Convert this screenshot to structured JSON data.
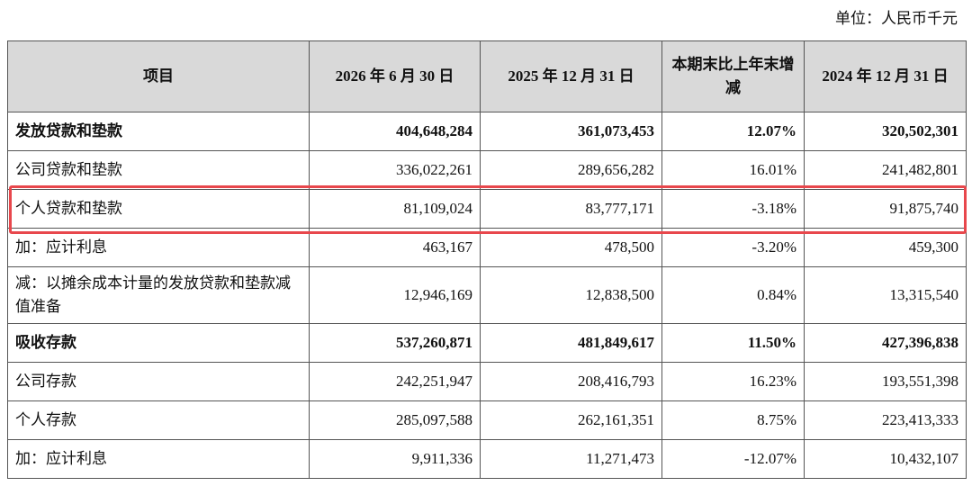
{
  "unit": "单位：人民币千元",
  "table": {
    "header": [
      "项目",
      "2026 年 6 月 30 日",
      "2025 年 12 月 31 日",
      "本期末比上年末增减",
      "2024 年 12 月 31 日"
    ],
    "rows": [
      [
        "发放贷款和垫款",
        "404,648,284",
        "361,073,453",
        "12.07%",
        "320,502,301"
      ],
      [
        "公司贷款和垫款",
        "336,022,261",
        "289,656,282",
        "16.01%",
        "241,482,801"
      ],
      [
        "个人贷款和垫款",
        "81,109,024",
        "83,777,171",
        "-3.18%",
        "91,875,740"
      ],
      [
        "加：应计利息",
        "463,167",
        "478,500",
        "-3.20%",
        "459,300"
      ],
      [
        "减：以摊余成本计量的发放贷款和垫款减值准备",
        "12,946,169",
        "12,838,500",
        "0.84%",
        "13,315,540"
      ],
      [
        "吸收存款",
        "537,260,871",
        "481,849,617",
        "11.50%",
        "427,396,838"
      ],
      [
        "公司存款",
        "242,251,947",
        "208,416,793",
        "16.23%",
        "193,551,398"
      ],
      [
        "个人存款",
        "285,097,588",
        "262,161,351",
        "8.75%",
        "223,413,333"
      ],
      [
        "加：应计利息",
        "9,911,336",
        "11,271,473",
        "-12.07%",
        "10,432,107"
      ]
    ]
  }
}
